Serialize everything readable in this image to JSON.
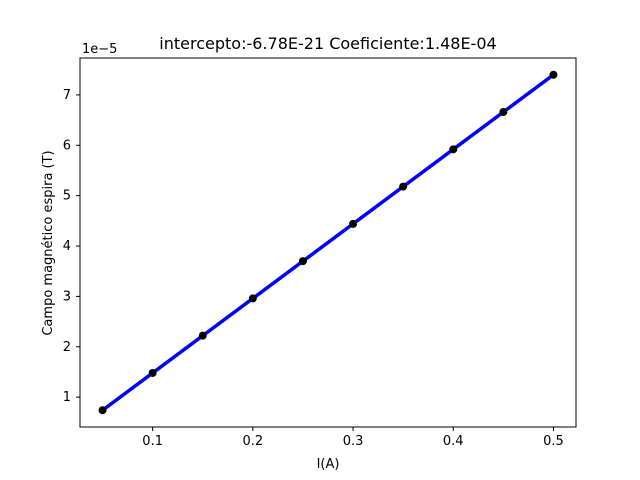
{
  "chart_data": {
    "type": "scatter",
    "title": "intercepto:-6.78E-21 Coeficiente:1.48E-04",
    "xlabel": "I(A)",
    "ylabel": "Campo magnético espira (T)",
    "offset_label": "1e−5",
    "x": [
      0.05,
      0.1,
      0.15,
      0.2,
      0.25,
      0.3,
      0.35,
      0.4,
      0.45,
      0.5
    ],
    "y": [
      7.4e-06,
      1.48e-05,
      2.22e-05,
      2.96e-05,
      3.7e-05,
      4.44e-05,
      5.18e-05,
      5.92e-05,
      6.66e-05,
      7.4e-05
    ],
    "fit_line": {
      "x": [
        0.05,
        0.5
      ],
      "y": [
        7.4e-06,
        7.4e-05
      ]
    },
    "xlim": [
      0.0275,
      0.5225
    ],
    "ylim": [
      4.07e-06,
      7.733e-05
    ],
    "xticks": [
      0.1,
      0.2,
      0.3,
      0.4,
      0.5
    ],
    "xtick_labels": [
      "0.1",
      "0.2",
      "0.3",
      "0.4",
      "0.5"
    ],
    "yticks": [
      1e-05,
      2e-05,
      3e-05,
      4e-05,
      5e-05,
      6e-05,
      7e-05
    ],
    "ytick_labels": [
      "1",
      "2",
      "3",
      "4",
      "5",
      "6",
      "7"
    ],
    "grid": false,
    "colors": {
      "line": "#0000ff",
      "points": "#000000",
      "axes": "#000000"
    }
  }
}
